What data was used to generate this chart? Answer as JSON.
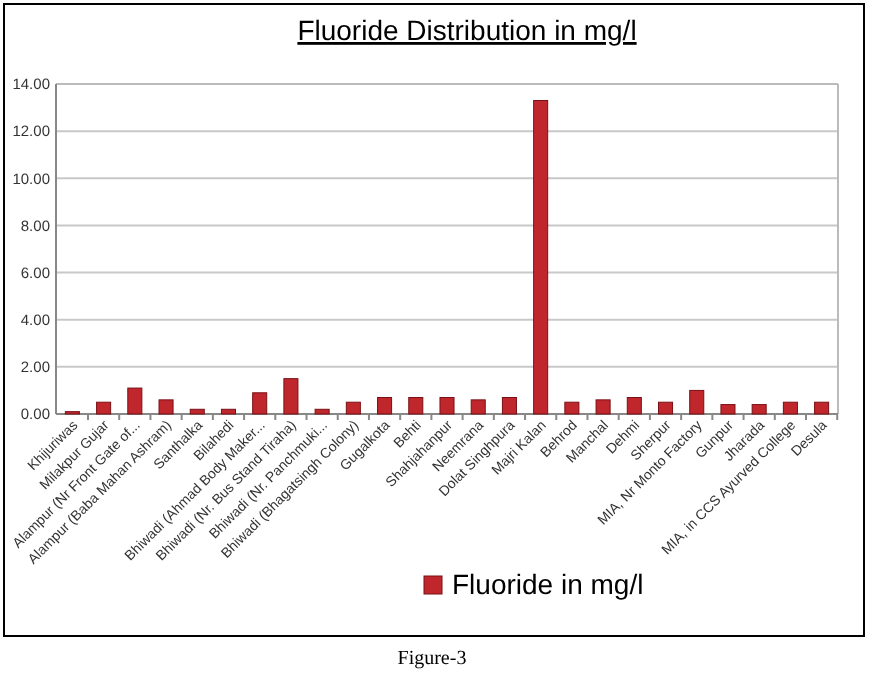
{
  "chart_data": {
    "type": "bar",
    "title": "Fluoride Distribution in mg/l",
    "categories": [
      "Khijuriwas",
      "Milakpur Gujar",
      "Alampur (Nr Front Gate of...",
      "Alampur (Baba Mahan Ashram)",
      "Santhalka",
      "Bilahedi",
      "Bhiwadi (Ahmad Body Maker...",
      "Bhiwadi (Nr. Bus Stand Tiraha)",
      "Bhiwadi (Nr. Panchmuki...",
      "Bhiwadi (Bhagatsingh Colony)",
      "Gugalkota",
      "Behti",
      "Shahjahanpur",
      "Neemrana",
      "Dolat Singhpura",
      "Majri Kalan",
      "Behrod",
      "Manchal",
      "Dehmi",
      "Sherpur",
      "MIA, Nr Monto Factory",
      "Gunpur",
      "Jharada",
      "MIA, in CCS Ayurved College",
      "Desula"
    ],
    "series": [
      {
        "name": "Fluoride in mg/l",
        "color": "#c0272d",
        "values": [
          0.1,
          0.5,
          1.1,
          0.6,
          0.2,
          0.2,
          0.9,
          1.5,
          0.2,
          0.5,
          0.7,
          0.7,
          0.7,
          0.6,
          0.7,
          13.3,
          0.5,
          0.6,
          0.7,
          0.5,
          1.0,
          0.4,
          0.4,
          0.5,
          0.5
        ]
      }
    ],
    "ylim": [
      0,
      14
    ],
    "yticks": [
      {
        "value": 0,
        "label": "0.00"
      },
      {
        "value": 2,
        "label": "2.00"
      },
      {
        "value": 4,
        "label": "4.00"
      },
      {
        "value": 6,
        "label": "6.00"
      },
      {
        "value": 8,
        "label": "8.00"
      },
      {
        "value": 10,
        "label": "10.00"
      },
      {
        "value": 12,
        "label": "12.00"
      },
      {
        "value": 14,
        "label": "14.00"
      }
    ],
    "grid": "y",
    "legend": "bottom right",
    "annotations": [
      "Figure-3"
    ]
  }
}
